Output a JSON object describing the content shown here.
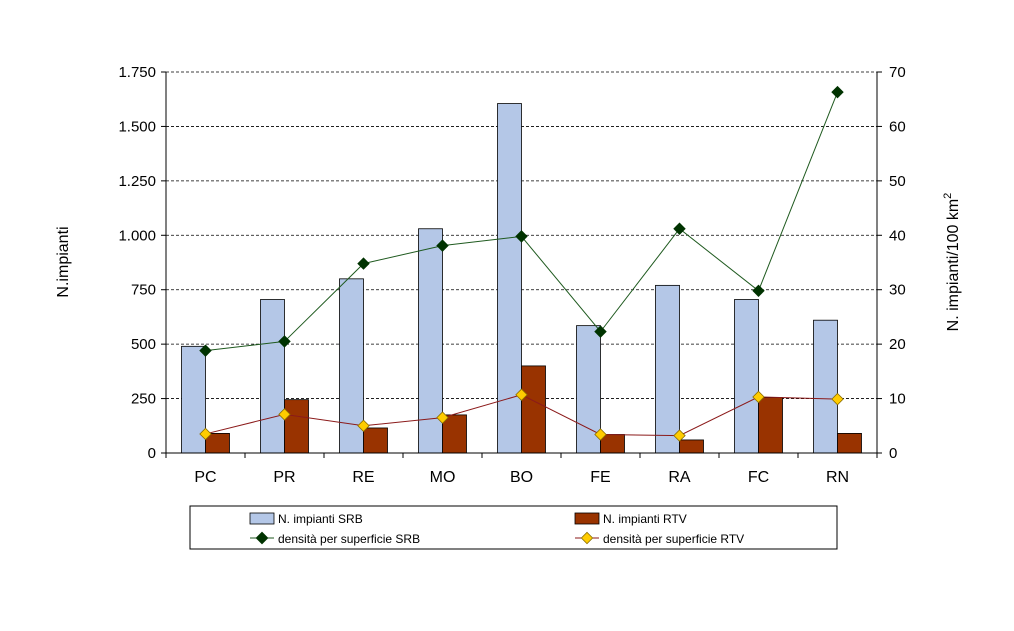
{
  "chart_data": {
    "type": "bar+line",
    "categories": [
      "PC",
      "PR",
      "RE",
      "MO",
      "BO",
      "FE",
      "RA",
      "FC",
      "RN"
    ],
    "bar_series": [
      {
        "name": "N. impianti SRB",
        "color": "#b4c7e7",
        "values": [
          490,
          705,
          800,
          1030,
          1605,
          585,
          770,
          705,
          610
        ]
      },
      {
        "name": "N. impianti RTV",
        "color": "#993300",
        "values": [
          90,
          245,
          115,
          175,
          400,
          85,
          60,
          255,
          90
        ]
      }
    ],
    "line_series": [
      {
        "name": "densità per superficie SRB",
        "color": "#1f5a1f",
        "marker": "#003300",
        "values": [
          18.8,
          20.5,
          34.8,
          38.1,
          39.8,
          22.3,
          41.2,
          29.8,
          66.3
        ]
      },
      {
        "name": "densità per superficie RTV",
        "color": "#8b1a1a",
        "marker": "#ffcc00",
        "values": [
          3.5,
          7.1,
          5.0,
          6.5,
          10.7,
          3.4,
          3.2,
          10.3,
          9.9
        ]
      }
    ],
    "y_left": {
      "label": "N.impianti",
      "min": 0,
      "max": 1750,
      "ticks": [
        0,
        250,
        500,
        750,
        1000,
        1250,
        1500,
        1750
      ],
      "tick_labels": [
        "0",
        "250",
        "500",
        "750",
        "1.000",
        "1.250",
        "1.500",
        "1.750"
      ]
    },
    "y_right": {
      "label": "N. impianti/100 km",
      "label_sup": "2",
      "min": 0,
      "max": 70,
      "ticks": [
        0,
        10,
        20,
        30,
        40,
        50,
        60,
        70
      ],
      "tick_labels": [
        "0",
        "10",
        "20",
        "30",
        "40",
        "50",
        "60",
        "70"
      ]
    },
    "grid": true,
    "legend_position": "bottom"
  }
}
